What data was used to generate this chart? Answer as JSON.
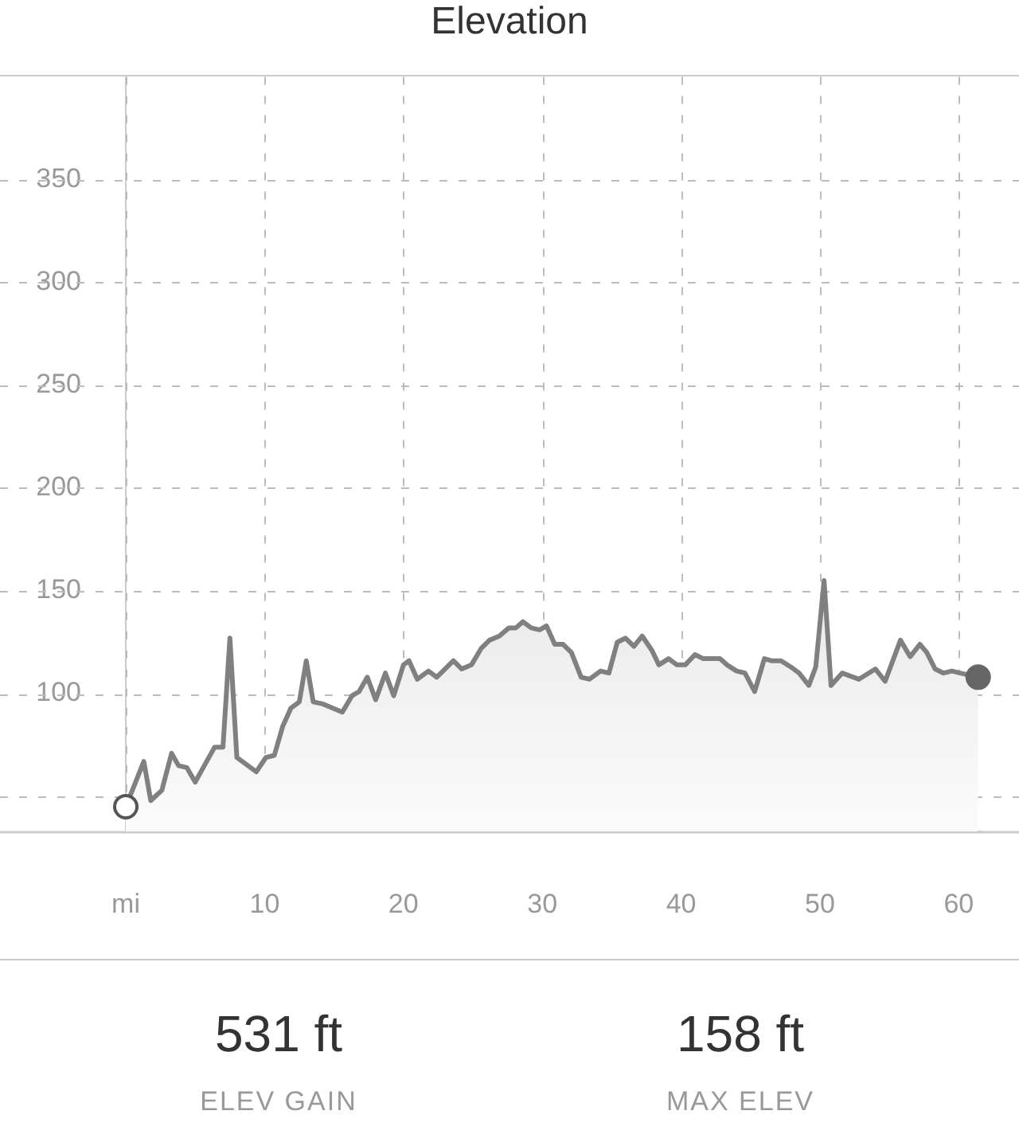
{
  "chart_data": {
    "type": "area",
    "title": "Elevation",
    "x": [
      0,
      1.3,
      1.8,
      2.6,
      3.3,
      3.8,
      4.4,
      5.0,
      6.4,
      7.0,
      7.5,
      8.0,
      9.4,
      10.1,
      10.7,
      11.3,
      11.9,
      12.5,
      13.0,
      13.5,
      14.2,
      15.6,
      16.3,
      16.8,
      17.4,
      18.0,
      18.7,
      19.3,
      20.0,
      20.4,
      21.0,
      21.8,
      22.4,
      23.6,
      24.2,
      24.9,
      25.6,
      26.2,
      26.9,
      27.6,
      28.1,
      28.6,
      29.2,
      29.8,
      30.3,
      30.9,
      31.5,
      32.1,
      32.8,
      33.4,
      34.2,
      34.8,
      35.4,
      36.0,
      36.6,
      37.2,
      37.9,
      38.4,
      39.1,
      39.7,
      40.3,
      41.0,
      41.6,
      42.8,
      43.3,
      44.0,
      44.6,
      45.3,
      46.0,
      46.5,
      47.2,
      47.9,
      48.5,
      49.2,
      49.7,
      50.3,
      50.8,
      51.6,
      52.8,
      54.0,
      54.7,
      55.8,
      56.5,
      57.2,
      57.7,
      58.3,
      58.9,
      59.5,
      60.1,
      61.4
    ],
    "series": [
      {
        "color": "#808080",
        "values": [
          45,
          67,
          48,
          53,
          71,
          65,
          64,
          57,
          74,
          74,
          127,
          69,
          62,
          69,
          70,
          84,
          93,
          96,
          116,
          96,
          95,
          91,
          99,
          101,
          108,
          97,
          110,
          99,
          114,
          116,
          107,
          111,
          108,
          116,
          112,
          114,
          122,
          126,
          128,
          132,
          132,
          135,
          132,
          131,
          133,
          124,
          124,
          120,
          108,
          107,
          111,
          110,
          125,
          127,
          123,
          128,
          121,
          114,
          117,
          114,
          114,
          119,
          117,
          117,
          114,
          111,
          110,
          101,
          117,
          116,
          116,
          113,
          110,
          104,
          113,
          155,
          104,
          110,
          107,
          112,
          106,
          126,
          118,
          124,
          120,
          112,
          110,
          111,
          110,
          108
        ]
      }
    ],
    "xlim": [
      0,
      61.6
    ],
    "ylim": [
      33,
      400
    ],
    "xticks": [
      {
        "value": 0,
        "label": "mi"
      },
      10,
      20,
      30,
      40,
      50,
      60
    ],
    "yticks": [
      {
        "value": 50,
        "label": null
      },
      100,
      150,
      200,
      250,
      300,
      350
    ],
    "grid": true,
    "legend": false,
    "annotations": [
      "531 ft",
      "ELEV GAIN",
      "158 ft",
      "MAX ELEV"
    ]
  }
}
